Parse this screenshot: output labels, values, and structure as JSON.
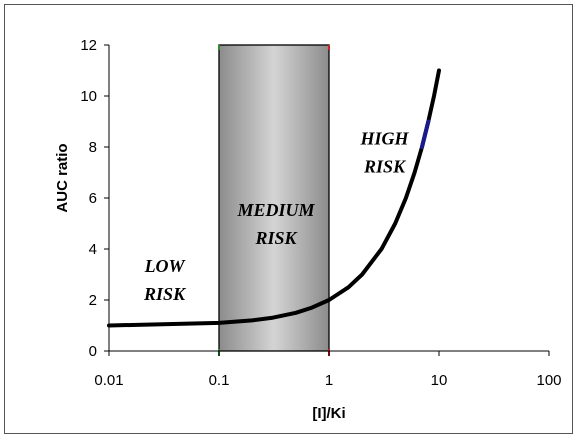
{
  "chart_data": {
    "type": "line",
    "title": "",
    "xlabel": "[I]/Ki",
    "ylabel": "AUC ratio",
    "x_scale": "log",
    "xlim": [
      0.01,
      100
    ],
    "ylim": [
      0,
      12
    ],
    "x_ticks": [
      0.01,
      0.1,
      1,
      10,
      100
    ],
    "x_tick_labels": [
      "0.01",
      "0.1",
      "1",
      "10",
      "100"
    ],
    "y_ticks": [
      0,
      2,
      4,
      6,
      8,
      10,
      12
    ],
    "y_tick_labels": [
      "0",
      "2",
      "4",
      "6",
      "8",
      "10",
      "12"
    ],
    "grid": false,
    "legend": "none",
    "series": [
      {
        "x": [
          0.01,
          0.1,
          0.2,
          0.3,
          0.5,
          0.7,
          1,
          1.5,
          2,
          3,
          4,
          5,
          6,
          7,
          8,
          9,
          10
        ],
        "y": [
          1.0,
          1.1,
          1.2,
          1.3,
          1.5,
          1.7,
          2.0,
          2.5,
          3.0,
          4.0,
          5.0,
          6.0,
          7.0,
          8.0,
          9.0,
          10.0,
          11.0
        ],
        "color": "#000000"
      }
    ],
    "highlight_segment": {
      "x": [
        7,
        8
      ],
      "y": [
        8.0,
        9.0
      ],
      "color": "#1a1a8c"
    },
    "zones": [
      {
        "label_lines": [
          "LOW",
          "RISK"
        ],
        "x_range": [
          0.01,
          0.1
        ],
        "label_at": [
          0.032,
          3.1
        ]
      },
      {
        "label_lines": [
          "MEDIUM",
          "RISK"
        ],
        "x_range": [
          0.1,
          1
        ],
        "label_at": [
          0.33,
          5.3
        ],
        "shaded": true
      },
      {
        "label_lines": [
          "HIGH",
          "RISK"
        ],
        "x_range": [
          1,
          100
        ],
        "label_at": [
          3.2,
          8.1
        ]
      }
    ],
    "zone_marker_colors": {
      "low_medium": "#2e8b2e",
      "medium_high": "#cc2222"
    }
  }
}
